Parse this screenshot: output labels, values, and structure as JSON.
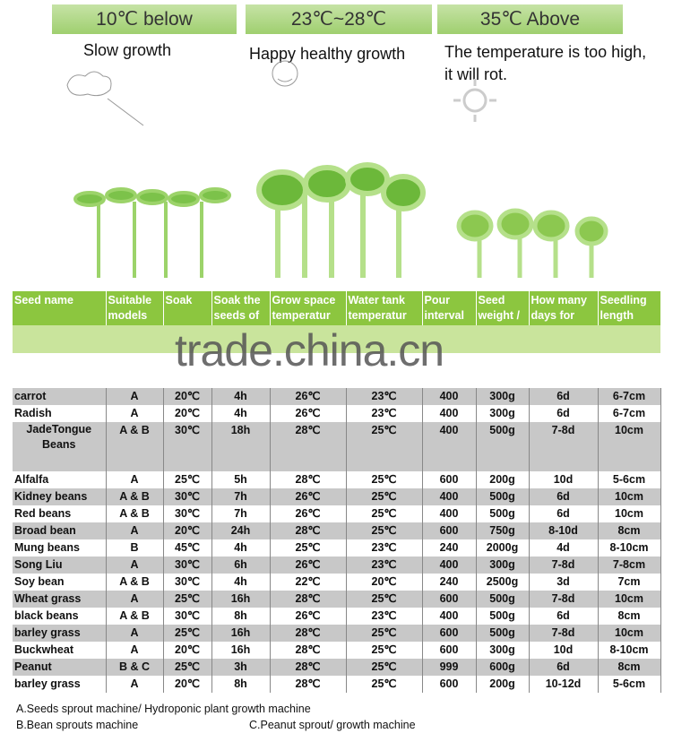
{
  "panels": [
    {
      "title": "10℃  below",
      "caption": "Slow growth"
    },
    {
      "title": "23℃~28℃",
      "caption": "Happy healthy growth"
    },
    {
      "title": "35℃  Above",
      "caption": "The temperature is too high, it will rot."
    }
  ],
  "watermark": "trade.china.cn",
  "table": {
    "headers": [
      "Seed name",
      "Suitable models",
      "Soak",
      "Soak the seeds of",
      "Grow space temperatur",
      "Water tank temperatur",
      "Pour interval",
      "Seed weight /",
      "How many days for",
      "Seedling length"
    ],
    "rows": [
      [
        "carrot",
        "A",
        "20℃",
        "4h",
        "26℃",
        "23℃",
        "400",
        "300g",
        "6d",
        "6-7cm"
      ],
      [
        "Radish",
        "A",
        "20℃",
        "4h",
        "26℃",
        "23℃",
        "400",
        "300g",
        "6d",
        "6-7cm"
      ],
      [
        "JadeTongue Beans",
        "A & B",
        "30℃",
        "18h",
        "28℃",
        "25℃",
        "400",
        "500g",
        "7-8d",
        "10cm"
      ],
      [
        "Alfalfa",
        "A",
        "25℃",
        "5h",
        "28℃",
        "25℃",
        "600",
        "200g",
        "10d",
        "5-6cm"
      ],
      [
        "Kidney beans",
        "A & B",
        "30℃",
        "7h",
        "26℃",
        "25℃",
        "400",
        "500g",
        "6d",
        "10cm"
      ],
      [
        "Red beans",
        "A & B",
        "30℃",
        "7h",
        "26℃",
        "25℃",
        "400",
        "500g",
        "6d",
        "10cm"
      ],
      [
        "Broad bean",
        "A",
        "20℃",
        "24h",
        "28℃",
        "25℃",
        "600",
        "750g",
        "8-10d",
        "8cm"
      ],
      [
        "Mung beans",
        "B",
        "45℃",
        "4h",
        "25℃",
        "23℃",
        "240",
        "2000g",
        "4d",
        "8-10cm"
      ],
      [
        "Song Liu",
        "A",
        "30℃",
        "6h",
        "26℃",
        "23℃",
        "400",
        "300g",
        "7-8d",
        "7-8cm"
      ],
      [
        "Soy bean",
        "A & B",
        "30℃",
        "4h",
        "22℃",
        "20℃",
        "240",
        "2500g",
        "3d",
        "7cm"
      ],
      [
        "Wheat  grass",
        "A",
        "25℃",
        "16h",
        "28℃",
        "25℃",
        "600",
        "500g",
        "7-8d",
        "10cm"
      ],
      [
        "black beans",
        "A & B",
        "30℃",
        "8h",
        "26℃",
        "23℃",
        "400",
        "500g",
        "6d",
        "8cm"
      ],
      [
        "barley grass",
        "A",
        "25℃",
        "16h",
        "28℃",
        "25℃",
        "600",
        "500g",
        "7-8d",
        "10cm"
      ],
      [
        "Buckwheat",
        "A",
        "20℃",
        "16h",
        "28℃",
        "25℃",
        "600",
        "300g",
        "10d",
        "8-10cm"
      ],
      [
        "Peanut",
        "B & C",
        "25℃",
        "3h",
        "28℃",
        "25℃",
        "999",
        "600g",
        "6d",
        "8cm"
      ],
      [
        "barley grass",
        "A",
        "20℃",
        "8h",
        "28℃",
        "25℃",
        "600",
        "200g",
        "10-12d",
        "5-6cm"
      ]
    ]
  },
  "notes": {
    "a": "A.Seeds sprout machine/ Hydroponic plant growth machine",
    "b": "B.Bean sprouts machine",
    "c": "C.Peanut sprout/ growth machine"
  }
}
